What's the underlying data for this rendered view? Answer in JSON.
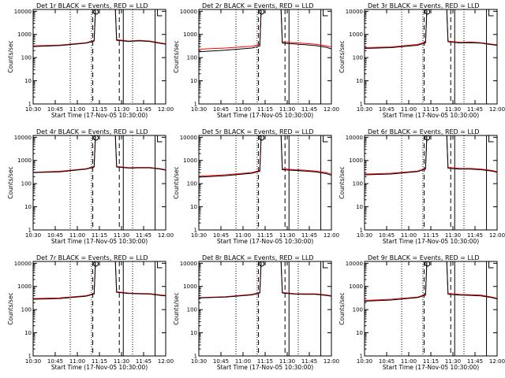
{
  "chart_data": [
    {
      "type": "line",
      "title": "Det 1r BLACK = Events, RED = LLD",
      "xlabel": "Start Time (17-Nov-05 10:30:00)",
      "ylabel": "Counts/sec",
      "x_ticks": [
        "10:30",
        "10:45",
        "11:00",
        "11:15",
        "11:30",
        "11:45",
        "12:00"
      ],
      "y_ticks": [
        "1",
        "10",
        "100",
        "1000",
        "10000"
      ],
      "ylim": [
        1,
        12000
      ],
      "yscale": "log",
      "xlim_min": [
        0,
        100
      ],
      "events": [
        [
          0,
          300
        ],
        [
          20,
          330
        ],
        [
          40,
          420
        ],
        [
          46,
          520
        ],
        [
          47,
          12000
        ],
        [
          62,
          12000
        ],
        [
          63,
          560
        ],
        [
          72,
          500
        ],
        [
          80,
          530
        ],
        [
          88,
          500
        ],
        [
          96,
          410
        ],
        [
          100,
          380
        ]
      ],
      "lld": [
        [
          0,
          320
        ],
        [
          20,
          350
        ],
        [
          40,
          440
        ],
        [
          46,
          560
        ],
        [
          47,
          12000
        ],
        [
          62,
          12000
        ],
        [
          63,
          600
        ],
        [
          72,
          520
        ],
        [
          80,
          560
        ],
        [
          88,
          520
        ],
        [
          96,
          430
        ],
        [
          100,
          400
        ]
      ],
      "dotted_x": [
        28,
        44,
        75
      ],
      "dashed_x": [
        45,
        65
      ],
      "solid_x": [
        68,
        92
      ]
    },
    {
      "type": "line",
      "title": "Det 2r BLACK = Events, RED = LLD",
      "xlabel": "Start Time (17-Nov-05 10:30:00)",
      "ylabel": "Counts/sec",
      "x_ticks": [
        "10:30",
        "10:45",
        "11:00",
        "11:15",
        "11:30",
        "11:45",
        "12:00"
      ],
      "y_ticks": [
        "1",
        "10",
        "100",
        "1000",
        "10000"
      ],
      "ylim": [
        1,
        12000
      ],
      "yscale": "log",
      "xlim_min": [
        0,
        100
      ],
      "events": [
        [
          0,
          180
        ],
        [
          20,
          210
        ],
        [
          40,
          260
        ],
        [
          46,
          320
        ],
        [
          47,
          12000
        ],
        [
          62,
          12000
        ],
        [
          63,
          420
        ],
        [
          72,
          390
        ],
        [
          80,
          360
        ],
        [
          88,
          330
        ],
        [
          96,
          280
        ],
        [
          100,
          240
        ]
      ],
      "lld": [
        [
          0,
          230
        ],
        [
          20,
          260
        ],
        [
          40,
          310
        ],
        [
          46,
          380
        ],
        [
          47,
          12000
        ],
        [
          62,
          12000
        ],
        [
          63,
          470
        ],
        [
          72,
          440
        ],
        [
          80,
          410
        ],
        [
          88,
          380
        ],
        [
          96,
          320
        ],
        [
          100,
          290
        ]
      ],
      "dotted_x": [
        28,
        44,
        75
      ],
      "dashed_x": [
        45,
        65
      ],
      "solid_x": [
        68,
        92
      ]
    },
    {
      "type": "line",
      "title": "Det 3r BLACK = Events, RED = LLD",
      "xlabel": "Start Time (17-Nov-05 10:30:00)",
      "ylabel": "Counts/sec",
      "x_ticks": [
        "10:30",
        "10:45",
        "11:00",
        "11:15",
        "11:30",
        "11:45",
        "12:00"
      ],
      "y_ticks": [
        "1",
        "10",
        "100",
        "1000",
        "10000"
      ],
      "ylim": [
        1,
        12000
      ],
      "yscale": "log",
      "xlim_min": [
        0,
        100
      ],
      "events": [
        [
          0,
          250
        ],
        [
          20,
          270
        ],
        [
          40,
          340
        ],
        [
          46,
          430
        ],
        [
          47,
          12000
        ],
        [
          62,
          12000
        ],
        [
          63,
          480
        ],
        [
          72,
          430
        ],
        [
          80,
          440
        ],
        [
          88,
          420
        ],
        [
          96,
          360
        ],
        [
          100,
          340
        ]
      ],
      "lld": [
        [
          0,
          270
        ],
        [
          20,
          290
        ],
        [
          40,
          370
        ],
        [
          46,
          470
        ],
        [
          47,
          12000
        ],
        [
          62,
          12000
        ],
        [
          63,
          520
        ],
        [
          72,
          460
        ],
        [
          80,
          470
        ],
        [
          88,
          440
        ],
        [
          96,
          380
        ],
        [
          100,
          360
        ]
      ],
      "dotted_x": [
        28,
        44,
        75
      ],
      "dashed_x": [
        45,
        65
      ],
      "solid_x": [
        68,
        92
      ]
    },
    {
      "type": "line",
      "title": "Det 4r BLACK = Events, RED = LLD",
      "xlabel": "Start Time (17-Nov-05 10:30:00)",
      "ylabel": "Counts/sec",
      "x_ticks": [
        "10:30",
        "10:45",
        "11:00",
        "11:15",
        "11:30",
        "11:45",
        "12:00"
      ],
      "y_ticks": [
        "1",
        "10",
        "100",
        "1000",
        "10000"
      ],
      "ylim": [
        1,
        12000
      ],
      "yscale": "log",
      "xlim_min": [
        0,
        100
      ],
      "events": [
        [
          0,
          300
        ],
        [
          20,
          320
        ],
        [
          40,
          420
        ],
        [
          46,
          520
        ],
        [
          47,
          12000
        ],
        [
          62,
          12000
        ],
        [
          63,
          520
        ],
        [
          72,
          470
        ],
        [
          80,
          480
        ],
        [
          88,
          480
        ],
        [
          96,
          420
        ],
        [
          100,
          380
        ]
      ],
      "lld": [
        [
          0,
          310
        ],
        [
          20,
          340
        ],
        [
          40,
          440
        ],
        [
          46,
          560
        ],
        [
          47,
          12000
        ],
        [
          62,
          12000
        ],
        [
          63,
          550
        ],
        [
          72,
          490
        ],
        [
          80,
          500
        ],
        [
          88,
          500
        ],
        [
          96,
          440
        ],
        [
          100,
          400
        ]
      ],
      "dotted_x": [
        28,
        44,
        75
      ],
      "dashed_x": [
        45,
        65
      ],
      "solid_x": [
        68,
        92
      ]
    },
    {
      "type": "line",
      "title": "Det 5r BLACK = Events, RED = LLD",
      "xlabel": "Start Time (17-Nov-05 10:30:00)",
      "ylabel": "Counts/sec",
      "x_ticks": [
        "10:30",
        "10:45",
        "11:00",
        "11:15",
        "11:30",
        "11:45",
        "12:00"
      ],
      "y_ticks": [
        "1",
        "10",
        "100",
        "1000",
        "10000"
      ],
      "ylim": [
        1,
        12000
      ],
      "yscale": "log",
      "xlim_min": [
        0,
        100
      ],
      "events": [
        [
          0,
          190
        ],
        [
          20,
          220
        ],
        [
          40,
          280
        ],
        [
          46,
          340
        ],
        [
          47,
          12000
        ],
        [
          62,
          12000
        ],
        [
          63,
          400
        ],
        [
          72,
          370
        ],
        [
          80,
          350
        ],
        [
          88,
          320
        ],
        [
          96,
          270
        ],
        [
          100,
          230
        ]
      ],
      "lld": [
        [
          0,
          210
        ],
        [
          20,
          240
        ],
        [
          40,
          300
        ],
        [
          46,
          370
        ],
        [
          47,
          12000
        ],
        [
          62,
          12000
        ],
        [
          63,
          440
        ],
        [
          72,
          400
        ],
        [
          80,
          380
        ],
        [
          88,
          350
        ],
        [
          96,
          300
        ],
        [
          100,
          260
        ]
      ],
      "dotted_x": [
        28,
        44,
        75
      ],
      "dashed_x": [
        45,
        65
      ],
      "solid_x": [
        68,
        92
      ]
    },
    {
      "type": "line",
      "title": "Det 6r BLACK = Events, RED = LLD",
      "xlabel": "Start Time (17-Nov-05 10:30:00)",
      "ylabel": "Counts/sec",
      "x_ticks": [
        "10:30",
        "10:45",
        "11:00",
        "11:15",
        "11:30",
        "11:45",
        "12:00"
      ],
      "y_ticks": [
        "1",
        "10",
        "100",
        "1000",
        "10000"
      ],
      "ylim": [
        1,
        12000
      ],
      "yscale": "log",
      "xlim_min": [
        0,
        100
      ],
      "events": [
        [
          0,
          240
        ],
        [
          20,
          260
        ],
        [
          40,
          330
        ],
        [
          46,
          420
        ],
        [
          47,
          12000
        ],
        [
          62,
          12000
        ],
        [
          63,
          460
        ],
        [
          72,
          420
        ],
        [
          80,
          420
        ],
        [
          88,
          400
        ],
        [
          96,
          350
        ],
        [
          100,
          310
        ]
      ],
      "lld": [
        [
          0,
          260
        ],
        [
          20,
          280
        ],
        [
          40,
          350
        ],
        [
          46,
          450
        ],
        [
          47,
          12000
        ],
        [
          62,
          12000
        ],
        [
          63,
          500
        ],
        [
          72,
          450
        ],
        [
          80,
          450
        ],
        [
          88,
          420
        ],
        [
          96,
          370
        ],
        [
          100,
          330
        ]
      ],
      "dotted_x": [
        28,
        44,
        75
      ],
      "dashed_x": [
        45,
        65
      ],
      "solid_x": [
        68,
        92
      ]
    },
    {
      "type": "line",
      "title": "Det 7r BLACK = Events, RED = LLD",
      "xlabel": "Start Time (17-Nov-05 10:30:00)",
      "ylabel": "Counts/sec",
      "x_ticks": [
        "10:30",
        "10:45",
        "11:00",
        "11:15",
        "11:30",
        "11:45",
        "12:00"
      ],
      "y_ticks": [
        "1",
        "10",
        "100",
        "1000",
        "10000"
      ],
      "ylim": [
        1,
        12000
      ],
      "yscale": "log",
      "xlim_min": [
        0,
        100
      ],
      "events": [
        [
          0,
          280
        ],
        [
          20,
          300
        ],
        [
          40,
          380
        ],
        [
          46,
          470
        ],
        [
          47,
          12000
        ],
        [
          62,
          12000
        ],
        [
          63,
          560
        ],
        [
          72,
          500
        ],
        [
          80,
          480
        ],
        [
          88,
          470
        ],
        [
          96,
          410
        ],
        [
          100,
          390
        ]
      ],
      "lld": [
        [
          0,
          300
        ],
        [
          20,
          320
        ],
        [
          40,
          400
        ],
        [
          46,
          500
        ],
        [
          47,
          12000
        ],
        [
          62,
          12000
        ],
        [
          63,
          590
        ],
        [
          72,
          520
        ],
        [
          80,
          500
        ],
        [
          88,
          490
        ],
        [
          96,
          430
        ],
        [
          100,
          410
        ]
      ],
      "dotted_x": [
        28,
        44,
        75
      ],
      "dashed_x": [
        45,
        65
      ],
      "solid_x": [
        68,
        92
      ]
    },
    {
      "type": "line",
      "title": "Det 8r BLACK = Events, RED = LLD",
      "xlabel": "Start Time (17-Nov-05 10:30:00)",
      "ylabel": "Counts/sec",
      "x_ticks": [
        "10:30",
        "10:45",
        "11:00",
        "11:15",
        "11:30",
        "11:45",
        "12:00"
      ],
      "y_ticks": [
        "1",
        "10",
        "100",
        "1000",
        "10000"
      ],
      "ylim": [
        1,
        12000
      ],
      "yscale": "log",
      "xlim_min": [
        0,
        100
      ],
      "events": [
        [
          0,
          320
        ],
        [
          20,
          350
        ],
        [
          40,
          430
        ],
        [
          46,
          530
        ],
        [
          47,
          12000
        ],
        [
          62,
          12000
        ],
        [
          63,
          520
        ],
        [
          72,
          470
        ],
        [
          80,
          460
        ],
        [
          88,
          460
        ],
        [
          96,
          410
        ],
        [
          100,
          380
        ]
      ],
      "lld": [
        [
          0,
          330
        ],
        [
          20,
          360
        ],
        [
          40,
          450
        ],
        [
          46,
          560
        ],
        [
          47,
          12000
        ],
        [
          62,
          12000
        ],
        [
          63,
          550
        ],
        [
          72,
          490
        ],
        [
          80,
          480
        ],
        [
          88,
          480
        ],
        [
          96,
          430
        ],
        [
          100,
          400
        ]
      ],
      "dotted_x": [
        28,
        44,
        75
      ],
      "dashed_x": [
        45,
        65
      ],
      "solid_x": [
        68,
        92
      ]
    },
    {
      "type": "line",
      "title": "Det 9r BLACK = Events, RED = LLD",
      "xlabel": "Start Time (17-Nov-05 10:30:00)",
      "ylabel": "Counts/sec",
      "x_ticks": [
        "10:30",
        "10:45",
        "11:00",
        "11:15",
        "11:30",
        "11:45",
        "12:00"
      ],
      "y_ticks": [
        "1",
        "10",
        "100",
        "1000",
        "10000"
      ],
      "ylim": [
        1,
        12000
      ],
      "yscale": "log",
      "xlim_min": [
        0,
        100
      ],
      "events": [
        [
          0,
          230
        ],
        [
          20,
          260
        ],
        [
          40,
          330
        ],
        [
          46,
          420
        ],
        [
          47,
          12000
        ],
        [
          62,
          12000
        ],
        [
          63,
          460
        ],
        [
          72,
          420
        ],
        [
          80,
          410
        ],
        [
          88,
          390
        ],
        [
          96,
          330
        ],
        [
          100,
          290
        ]
      ],
      "lld": [
        [
          0,
          250
        ],
        [
          20,
          280
        ],
        [
          40,
          350
        ],
        [
          46,
          450
        ],
        [
          47,
          12000
        ],
        [
          62,
          12000
        ],
        [
          63,
          500
        ],
        [
          72,
          450
        ],
        [
          80,
          440
        ],
        [
          88,
          420
        ],
        [
          96,
          350
        ],
        [
          100,
          310
        ]
      ],
      "dotted_x": [
        28,
        44,
        75
      ],
      "dashed_x": [
        45,
        65
      ],
      "solid_x": [
        68,
        92
      ]
    }
  ],
  "colors": {
    "events": "#000000",
    "lld": "#ff0000"
  }
}
